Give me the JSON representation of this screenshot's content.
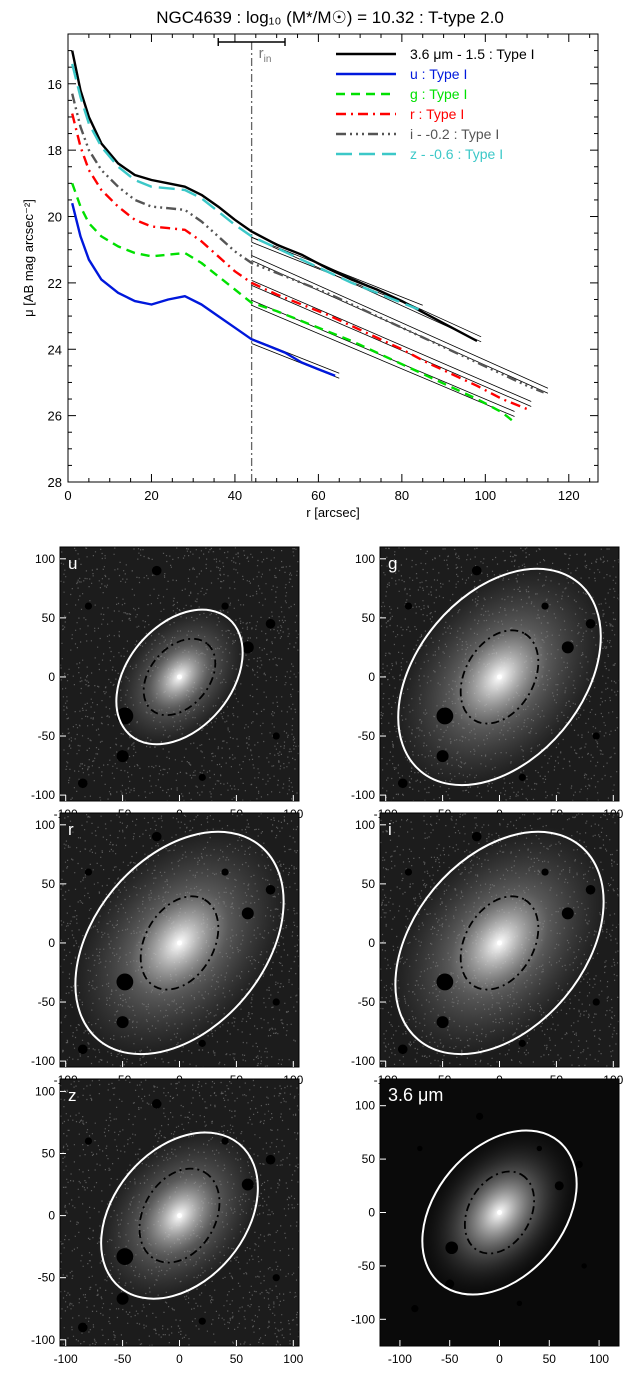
{
  "chart_data": [
    {
      "type": "line",
      "title": "NGC4639 : log₁₀ (M*/M☉) = 10.32 : T-type 2.0",
      "xlabel": "r [arcsec]",
      "ylabel": "μ [AB mag arcsec⁻²]",
      "xlim": [
        0,
        127
      ],
      "ylim": [
        28,
        14.5
      ],
      "y_inverted": true,
      "xticks": [
        "0",
        "20",
        "40",
        "60",
        "80",
        "100",
        "120"
      ],
      "yticks": [
        "16",
        "18",
        "20",
        "22",
        "24",
        "26",
        "28"
      ],
      "legend_placement": "top-right",
      "annotations": {
        "r_in_label": "r",
        "r_in_sub": "in",
        "r_in_value": 44,
        "r_in_range": [
          36,
          52
        ]
      },
      "series": [
        {
          "name": "3.6 μm - 1.5 : Type I",
          "color": "#000000",
          "dash": "solid",
          "x": [
            1,
            3,
            5,
            8,
            12,
            16,
            20,
            24,
            28,
            32,
            36,
            40,
            44,
            50,
            56,
            62,
            68,
            74,
            80,
            86,
            92,
            98
          ],
          "y": [
            15.0,
            16.2,
            17.0,
            17.8,
            18.4,
            18.75,
            18.9,
            19.0,
            19.1,
            19.35,
            19.7,
            20.1,
            20.45,
            20.85,
            21.15,
            21.55,
            21.9,
            22.2,
            22.55,
            22.95,
            23.35,
            23.75
          ]
        },
        {
          "name": "u : Type I",
          "color": "#0018dc",
          "dash": "solid",
          "x": [
            1,
            3,
            5,
            8,
            12,
            16,
            20,
            24,
            28,
            32,
            36,
            40,
            44,
            48,
            52,
            56,
            60,
            64
          ],
          "y": [
            19.6,
            20.6,
            21.3,
            21.9,
            22.3,
            22.55,
            22.65,
            22.5,
            22.4,
            22.65,
            23.0,
            23.35,
            23.7,
            23.9,
            24.1,
            24.4,
            24.6,
            24.8
          ]
        },
        {
          "name": "g : Type I",
          "color": "#00e000",
          "dash": "dash",
          "x": [
            1,
            3,
            5,
            8,
            12,
            16,
            20,
            24,
            28,
            32,
            36,
            40,
            44,
            50,
            56,
            62,
            68,
            74,
            80,
            86,
            92,
            98,
            104,
            107
          ],
          "y": [
            19.0,
            19.7,
            20.2,
            20.6,
            20.9,
            21.1,
            21.2,
            21.15,
            21.1,
            21.4,
            21.8,
            22.2,
            22.6,
            22.85,
            23.15,
            23.45,
            23.75,
            24.1,
            24.45,
            24.8,
            25.15,
            25.5,
            25.9,
            26.2
          ]
        },
        {
          "name": "r : Type I",
          "color": "#ff0000",
          "dash": "dashdot",
          "x": [
            1,
            3,
            5,
            8,
            12,
            16,
            20,
            24,
            28,
            32,
            36,
            40,
            44,
            50,
            56,
            62,
            68,
            74,
            80,
            86,
            92,
            98,
            104,
            110
          ],
          "y": [
            16.9,
            17.9,
            18.6,
            19.2,
            19.7,
            20.1,
            20.3,
            20.35,
            20.4,
            20.75,
            21.2,
            21.65,
            22.0,
            22.35,
            22.65,
            22.95,
            23.3,
            23.65,
            24.0,
            24.4,
            24.75,
            25.1,
            25.5,
            25.8
          ]
        },
        {
          "name": "i - -0.2 : Type I",
          "color": "#555555",
          "dash": "dashdotdotdot",
          "x": [
            1,
            3,
            5,
            8,
            12,
            16,
            20,
            24,
            28,
            32,
            36,
            40,
            44,
            50,
            56,
            62,
            68,
            74,
            80,
            86,
            92,
            98,
            104,
            110,
            114
          ],
          "y": [
            16.3,
            17.3,
            18.0,
            18.6,
            19.1,
            19.5,
            19.7,
            19.75,
            19.8,
            20.15,
            20.6,
            21.05,
            21.4,
            21.7,
            22.0,
            22.3,
            22.65,
            23.0,
            23.35,
            23.7,
            24.05,
            24.4,
            24.75,
            25.1,
            25.3
          ]
        },
        {
          "name": "z - -0.6 : Type I",
          "color": "#3cc8c8",
          "dash": "longdash",
          "x": [
            1,
            3,
            5,
            8,
            12,
            16,
            20,
            24,
            28,
            32,
            36,
            40,
            44,
            50,
            56,
            62,
            68,
            74,
            80,
            84
          ],
          "y": [
            15.4,
            16.4,
            17.2,
            17.9,
            18.5,
            18.9,
            19.1,
            19.15,
            19.2,
            19.45,
            19.85,
            20.25,
            20.6,
            20.95,
            21.3,
            21.65,
            22.0,
            22.3,
            22.6,
            22.8
          ]
        }
      ],
      "fits": [
        {
          "of": "3.6 μm - 1.5 : Type I",
          "x": [
            44,
            99
          ],
          "y": [
            20.55,
            23.7
          ]
        },
        {
          "of": "u : Type I",
          "x": [
            44,
            65
          ],
          "y": [
            23.75,
            24.8
          ]
        },
        {
          "of": "g : Type I",
          "x": [
            44,
            107
          ],
          "y": [
            22.6,
            25.95
          ]
        },
        {
          "of": "r : Type I",
          "x": [
            44,
            111
          ],
          "y": [
            22.0,
            25.65
          ]
        },
        {
          "of": "i - -0.2 : Type I",
          "x": [
            44,
            115
          ],
          "y": [
            21.25,
            25.25
          ]
        },
        {
          "of": "z - -0.6 : Type I",
          "x": [
            44,
            85
          ],
          "y": [
            20.7,
            22.75
          ]
        }
      ]
    },
    {
      "type": "image-panels",
      "colormap": "gray",
      "panels": [
        {
          "label": "u",
          "xlim": [
            -105,
            105
          ],
          "ylim": [
            -105,
            110
          ],
          "xticks": [
            "-100",
            "-50",
            "0",
            "50",
            "100"
          ],
          "yticks": [
            "100",
            "50",
            "0",
            "-50",
            "-100"
          ],
          "outer_ellipse": {
            "cx": 0,
            "cy": 0,
            "a": 67,
            "b": 44,
            "angle_deg": 50
          },
          "inner_ellipse": {
            "cx": 0,
            "cy": 0,
            "a": 38,
            "b": 25,
            "angle_deg": 50
          }
        },
        {
          "label": "g",
          "xlim": [
            -105,
            105
          ],
          "ylim": [
            -105,
            110
          ],
          "xticks": [
            "-100",
            "-50",
            "0",
            "50",
            "100"
          ],
          "yticks": [
            "100",
            "50",
            "0",
            "-50",
            "-100"
          ],
          "outer_ellipse": {
            "cx": 0,
            "cy": 0,
            "a": 108,
            "b": 70,
            "angle_deg": 50
          },
          "inner_ellipse": {
            "cx": 0,
            "cy": 0,
            "a": 44,
            "b": 29,
            "angle_deg": 60
          }
        },
        {
          "label": "r",
          "xlim": [
            -105,
            105
          ],
          "ylim": [
            -105,
            110
          ],
          "xticks": [
            "-100",
            "-50",
            "0",
            "50",
            "100"
          ],
          "yticks": [
            "100",
            "50",
            "0",
            "-50",
            "-100"
          ],
          "outer_ellipse": {
            "cx": 0,
            "cy": 0,
            "a": 111,
            "b": 72,
            "angle_deg": 50
          },
          "inner_ellipse": {
            "cx": 0,
            "cy": 0,
            "a": 44,
            "b": 29,
            "angle_deg": 60
          }
        },
        {
          "label": "i",
          "xlim": [
            -105,
            105
          ],
          "ylim": [
            -105,
            110
          ],
          "xticks": [
            "-100",
            "-50",
            "0",
            "50",
            "100"
          ],
          "yticks": [
            "100",
            "50",
            "0",
            "-50",
            "-100"
          ],
          "outer_ellipse": {
            "cx": 0,
            "cy": 0,
            "a": 111,
            "b": 72,
            "angle_deg": 50
          },
          "inner_ellipse": {
            "cx": 0,
            "cy": 0,
            "a": 44,
            "b": 29,
            "angle_deg": 60
          }
        },
        {
          "label": "z",
          "xlim": [
            -105,
            105
          ],
          "ylim": [
            -105,
            110
          ],
          "xticks": [
            "-100",
            "-50",
            "0",
            "50",
            "100"
          ],
          "yticks": [
            "100",
            "50",
            "0",
            "-50",
            "-100"
          ],
          "outer_ellipse": {
            "cx": 0,
            "cy": 0,
            "a": 82,
            "b": 53,
            "angle_deg": 50
          },
          "inner_ellipse": {
            "cx": 0,
            "cy": 0,
            "a": 44,
            "b": 29,
            "angle_deg": 60
          }
        },
        {
          "label": "3.6 μm",
          "xlim": [
            -120,
            120
          ],
          "ylim": [
            -125,
            125
          ],
          "xticks": [
            "-100",
            "-50",
            "0",
            "50",
            "100"
          ],
          "yticks": [
            "100",
            "50",
            "0",
            "-50",
            "-100"
          ],
          "outer_ellipse": {
            "cx": 0,
            "cy": 0,
            "a": 93,
            "b": 60,
            "angle_deg": 50
          },
          "inner_ellipse": {
            "cx": 0,
            "cy": 0,
            "a": 44,
            "b": 29,
            "angle_deg": 60
          }
        }
      ]
    }
  ]
}
